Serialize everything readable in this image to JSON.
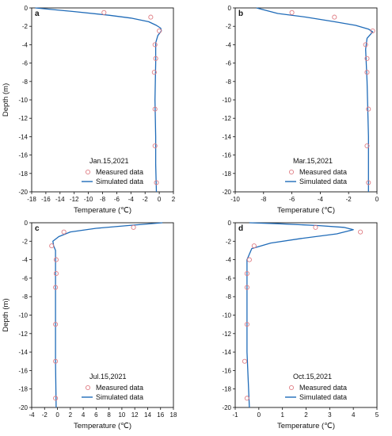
{
  "figure": {
    "colors": {
      "simulated": "#1f6bb8",
      "measured": "#e07f86",
      "axis": "#111111"
    }
  },
  "chart_data": [
    {
      "type": "line",
      "panel_label": "a",
      "date": "Jan.15,2021",
      "xlabel": "Temperature (℃)",
      "ylabel": "Depth (m)",
      "xlim": [
        -18,
        2
      ],
      "ylim": [
        -20,
        0
      ],
      "xticks": [
        -18,
        -16,
        -14,
        -12,
        -10,
        -8,
        -6,
        -4,
        -2,
        0,
        2
      ],
      "xtick_labels": [
        "-18",
        "-16",
        "-14",
        "-12",
        "-10",
        "-8",
        "-6",
        "-4",
        "-2",
        "0",
        "2"
      ],
      "yticks": [
        0,
        -2,
        -4,
        -6,
        -8,
        -10,
        -12,
        -14,
        -16,
        -18,
        -20
      ],
      "ytick_labels": [
        "0",
        "-2",
        "-4",
        "-6",
        "-8",
        "-10",
        "-12",
        "-14",
        "-16",
        "-18",
        "-20"
      ],
      "legend_position": "bottom-right",
      "series": [
        {
          "name": "Measured data",
          "style": "markers",
          "x": [
            -7.8,
            -1.2,
            0.0,
            -0.6,
            -0.5,
            -0.7,
            -0.6,
            -0.6,
            -0.4
          ],
          "y": [
            -0.5,
            -1.0,
            -2.5,
            -4.0,
            -5.5,
            -7.0,
            -11.0,
            -15.0,
            -19.0
          ]
        },
        {
          "name": "Simulated data",
          "style": "line",
          "x": [
            -17.5,
            -12.0,
            -7.0,
            -4.0,
            -1.5,
            -0.4,
            0.2,
            0.3,
            -0.2,
            -0.5,
            -0.5,
            -0.6,
            -0.5,
            -0.5,
            -0.4
          ],
          "y": [
            0.0,
            -0.4,
            -0.8,
            -1.1,
            -1.5,
            -1.9,
            -2.2,
            -2.5,
            -3.0,
            -3.8,
            -6.0,
            -10.0,
            -14.0,
            -17.0,
            -20.0
          ]
        }
      ]
    },
    {
      "type": "line",
      "panel_label": "b",
      "date": "Mar.15,2021",
      "xlabel": "Temperature (℃)",
      "ylabel": "",
      "xlim": [
        -10,
        0
      ],
      "ylim": [
        -20,
        0
      ],
      "xticks": [
        -10,
        -8,
        -6,
        -4,
        -2,
        0
      ],
      "xtick_labels": [
        "-10",
        "-8",
        "-6",
        "-4",
        "-2",
        "0"
      ],
      "yticks": [
        0,
        -2,
        -4,
        -6,
        -8,
        -10,
        -12,
        -14,
        -16,
        -18,
        -20
      ],
      "ytick_labels": [
        "0",
        "-2",
        "-4",
        "-6",
        "-8",
        "-10",
        "-12",
        "-14",
        "-16",
        "-18",
        "-20"
      ],
      "legend_position": "bottom-right",
      "series": [
        {
          "name": "Measured data",
          "style": "markers",
          "x": [
            -6.0,
            -3.0,
            -0.3,
            -0.8,
            -0.7,
            -0.7,
            -0.6,
            -0.7,
            -0.6
          ],
          "y": [
            -0.5,
            -1.0,
            -2.5,
            -4.0,
            -5.5,
            -7.0,
            -11.0,
            -15.0,
            -19.0
          ]
        },
        {
          "name": "Simulated data",
          "style": "line",
          "x": [
            -8.5,
            -7.0,
            -5.0,
            -3.0,
            -1.5,
            -0.6,
            -0.3,
            -0.7,
            -0.8,
            -0.7,
            -0.6,
            -0.6
          ],
          "y": [
            0.0,
            -0.6,
            -1.0,
            -1.5,
            -1.9,
            -2.3,
            -2.6,
            -3.3,
            -4.5,
            -8.0,
            -14.0,
            -20.0
          ]
        }
      ]
    },
    {
      "type": "line",
      "panel_label": "c",
      "date": "Jul.15,2021",
      "xlabel": "Temperature (℃)",
      "ylabel": "Depth (m)",
      "xlim": [
        -4,
        18
      ],
      "ylim": [
        -20,
        0
      ],
      "xticks": [
        -4,
        -2,
        0,
        2,
        4,
        6,
        8,
        10,
        12,
        14,
        16,
        18
      ],
      "xtick_labels": [
        "-4",
        "-2",
        "0",
        "2",
        "4",
        "6",
        "8",
        "10",
        "12",
        "14",
        "16",
        "18"
      ],
      "yticks": [
        0,
        -2,
        -4,
        -6,
        -8,
        -10,
        -12,
        -14,
        -16,
        -18,
        -20
      ],
      "ytick_labels": [
        "0",
        "-2",
        "-4",
        "-6",
        "-8",
        "-10",
        "-12",
        "-14",
        "-16",
        "-18",
        "-20"
      ],
      "legend_position": "bottom-right",
      "series": [
        {
          "name": "Measured data",
          "style": "markers",
          "x": [
            11.8,
            1.0,
            -0.9,
            -0.2,
            -0.2,
            -0.3,
            -0.3,
            -0.3,
            -0.3
          ],
          "y": [
            -0.5,
            -1.0,
            -2.5,
            -4.0,
            -5.5,
            -7.0,
            -11.0,
            -15.0,
            -19.0
          ]
        },
        {
          "name": "Simulated data",
          "style": "line",
          "x": [
            16.3,
            11.0,
            6.0,
            2.0,
            0.2,
            -0.7,
            -0.6,
            -0.3,
            -0.3,
            -0.3,
            -0.3,
            -0.2
          ],
          "y": [
            0.0,
            -0.3,
            -0.6,
            -1.0,
            -1.5,
            -2.0,
            -2.5,
            -3.0,
            -5.0,
            -10.0,
            -15.0,
            -20.0
          ]
        }
      ]
    },
    {
      "type": "line",
      "panel_label": "d",
      "date": "Oct.15,2021",
      "xlabel": "Temperature (℃)",
      "ylabel": "",
      "xlim": [
        -1,
        5
      ],
      "ylim": [
        -20,
        0
      ],
      "xticks": [
        -1,
        0,
        1,
        2,
        3,
        4,
        5
      ],
      "xtick_labels": [
        "-1",
        "0",
        "1",
        "2",
        "3",
        "4",
        "5"
      ],
      "yticks": [
        0,
        -2,
        -4,
        -6,
        -8,
        -10,
        -12,
        -14,
        -16,
        -18,
        -20
      ],
      "ytick_labels": [
        "0",
        "-2",
        "-4",
        "-6",
        "-8",
        "-10",
        "-12",
        "-14",
        "-16",
        "-18",
        "-20"
      ],
      "legend_position": "bottom-right",
      "series": [
        {
          "name": "Measured data",
          "style": "markers",
          "x": [
            2.4,
            4.3,
            -0.2,
            -0.4,
            -0.5,
            -0.5,
            -0.5,
            -0.6,
            -0.5
          ],
          "y": [
            -0.5,
            -1.0,
            -2.5,
            -4.0,
            -5.5,
            -7.0,
            -11.0,
            -15.0,
            -19.0
          ]
        },
        {
          "name": "Simulated data",
          "style": "line",
          "x": [
            -0.4,
            0.8,
            2.5,
            3.6,
            4.0,
            3.3,
            1.8,
            0.5,
            -0.3,
            -0.5,
            -0.5,
            -0.5,
            -0.4
          ],
          "y": [
            0.0,
            -0.1,
            -0.3,
            -0.5,
            -0.75,
            -1.2,
            -1.7,
            -2.2,
            -2.8,
            -4.0,
            -8.0,
            -14.0,
            -20.0
          ]
        }
      ]
    }
  ]
}
